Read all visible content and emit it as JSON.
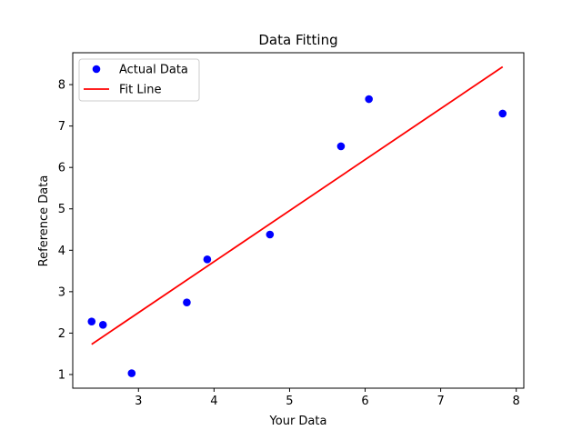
{
  "chart_data": {
    "type": "scatter",
    "title": "Data Fitting",
    "xlabel": "Your Data",
    "ylabel": "Reference Data",
    "xlim": [
      2.13,
      8.1
    ],
    "ylim": [
      0.67,
      8.77
    ],
    "xticks": [
      3,
      4,
      5,
      6,
      7,
      8
    ],
    "yticks": [
      1,
      2,
      3,
      4,
      5,
      6,
      7,
      8
    ],
    "grid": false,
    "legend_position": "upper left",
    "series": [
      {
        "name": "Actual Data",
        "kind": "scatter",
        "color": "#0000ff",
        "x": [
          2.38,
          2.53,
          2.91,
          3.64,
          3.91,
          4.74,
          5.68,
          6.05,
          7.82
        ],
        "y": [
          2.28,
          2.2,
          1.03,
          2.74,
          3.78,
          4.38,
          6.51,
          7.65,
          7.3
        ]
      },
      {
        "name": "Fit Line",
        "kind": "line",
        "color": "#ff0000",
        "x": [
          2.38,
          7.82
        ],
        "y": [
          1.73,
          8.43
        ]
      }
    ]
  }
}
